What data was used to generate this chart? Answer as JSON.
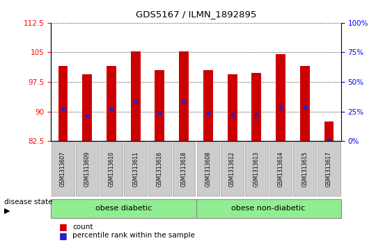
{
  "title": "GDS5167 / ILMN_1892895",
  "samples": [
    "GSM1313607",
    "GSM1313609",
    "GSM1313610",
    "GSM1313611",
    "GSM1313616",
    "GSM1313618",
    "GSM1313608",
    "GSM1313612",
    "GSM1313613",
    "GSM1313614",
    "GSM1313615",
    "GSM1313617"
  ],
  "bar_tops": [
    101.5,
    99.5,
    101.5,
    105.2,
    100.5,
    105.2,
    100.5,
    99.5,
    99.8,
    104.5,
    101.5,
    87.5
  ],
  "bar_bottom": 82.5,
  "blue_positions": [
    90.5,
    88.8,
    90.5,
    92.5,
    89.8,
    92.5,
    89.5,
    89.3,
    89.3,
    91.0,
    91.0,
    82.8
  ],
  "ylim_left": [
    82.5,
    112.5
  ],
  "ylim_right": [
    0,
    100
  ],
  "yticks_left": [
    82.5,
    90.0,
    97.5,
    105.0,
    112.5
  ],
  "yticks_right": [
    0,
    25,
    50,
    75,
    100
  ],
  "ytick_left_labels": [
    "82.5",
    "90",
    "97.5",
    "105",
    "112.5"
  ],
  "ytick_right_labels": [
    "0%",
    "25%",
    "50%",
    "75%",
    "100%"
  ],
  "bar_color": "#CC0000",
  "blue_color": "#2222CC",
  "group1_label": "obese diabetic",
  "group2_label": "obese non-diabetic",
  "disease_label": "disease state",
  "legend_count": "count",
  "legend_pct": "percentile rank within the sample",
  "group_color": "#90EE90",
  "bg_plot": "#FFFFFF",
  "bg_xticklabel": "#CCCCCC"
}
